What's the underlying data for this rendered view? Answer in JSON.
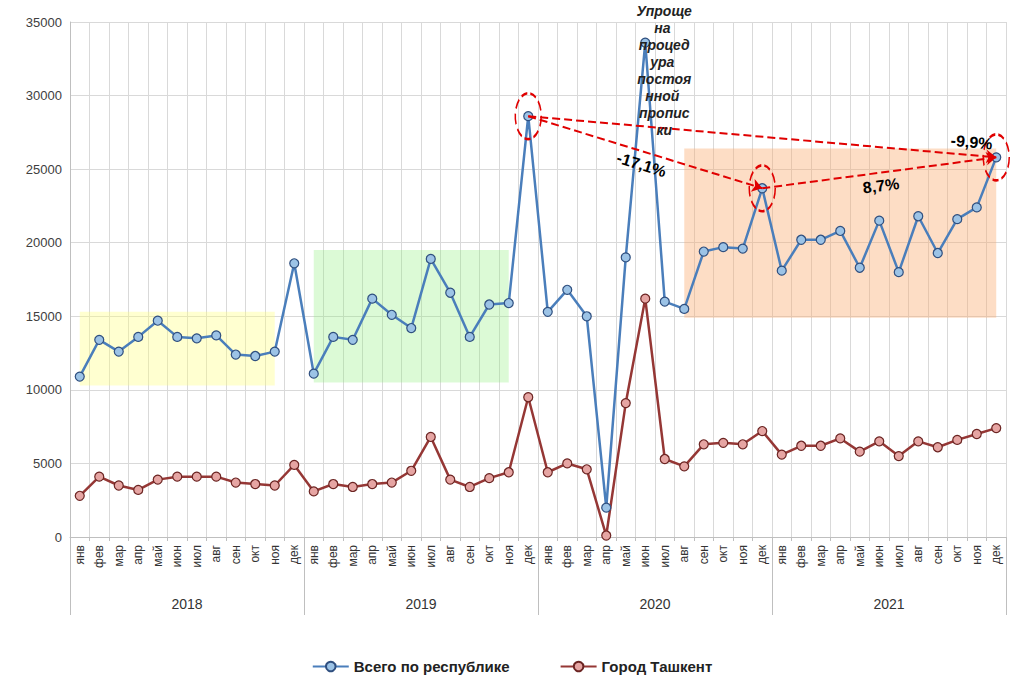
{
  "chart_data": {
    "type": "line",
    "categories": [
      "янв",
      "фев",
      "мар",
      "апр",
      "май",
      "июн",
      "июл",
      "авг",
      "сен",
      "окт",
      "ноя",
      "дек",
      "янв",
      "фев",
      "мар",
      "апр",
      "май",
      "июн",
      "июл",
      "авг",
      "сен",
      "окт",
      "ноя",
      "дек",
      "янв",
      "фев",
      "мар",
      "апр",
      "май",
      "июн",
      "июл",
      "авг",
      "сен",
      "окт",
      "ноя",
      "дек",
      "янв",
      "фев",
      "мар",
      "апр",
      "май",
      "июн",
      "июл",
      "авг",
      "сен",
      "окт",
      "ноя",
      "дек"
    ],
    "years": [
      "2018",
      "2019",
      "2020",
      "2021"
    ],
    "series": [
      {
        "name": "Всего по республике",
        "color": "#4a7ebb",
        "marker": "circle",
        "values": [
          10900,
          13400,
          12600,
          13600,
          14700,
          13600,
          13500,
          13700,
          12400,
          12300,
          12600,
          18600,
          11100,
          13600,
          13400,
          16200,
          15100,
          14200,
          18900,
          16600,
          13600,
          15800,
          15900,
          28600,
          15300,
          16800,
          15000,
          2000,
          19000,
          33600,
          16000,
          15500,
          19400,
          19700,
          19600,
          23700,
          18100,
          20200,
          20200,
          20800,
          18300,
          21500,
          18000,
          21800,
          19300,
          21600,
          22400,
          25800
        ]
      },
      {
        "name": "Город Ташкент",
        "color": "#953735",
        "marker": "circle",
        "values": [
          2800,
          4100,
          3500,
          3200,
          3900,
          4100,
          4100,
          4100,
          3700,
          3600,
          3500,
          4900,
          3100,
          3600,
          3400,
          3600,
          3700,
          4500,
          6800,
          3900,
          3400,
          4000,
          4400,
          9500,
          4400,
          5000,
          4600,
          100,
          9100,
          16200,
          5300,
          4800,
          6300,
          6400,
          6300,
          7200,
          5600,
          6200,
          6200,
          6700,
          5800,
          6500,
          5500,
          6500,
          6100,
          6600,
          7000,
          7400
        ]
      }
    ],
    "ylim": [
      0,
      35000
    ],
    "yticks": [
      0,
      5000,
      10000,
      15000,
      20000,
      25000,
      30000,
      35000
    ],
    "grid": true,
    "legend": "bottom",
    "annotations": [
      {
        "text": "Упрощена процедура постоянной прописки",
        "series": "Всего по республике",
        "month": "июн",
        "year": "2020"
      }
    ],
    "arrows": [
      {
        "text": "-9,9%",
        "series": "Всего по республике",
        "from": {
          "month": "дек",
          "year": "2019"
        },
        "to": {
          "month": "дек",
          "year": "2021"
        }
      },
      {
        "text": "-17,1%",
        "series": "Всего по республике",
        "from": {
          "month": "дек",
          "year": "2019"
        },
        "to": {
          "month": "дек",
          "year": "2020"
        }
      },
      {
        "text": "8,7%",
        "series": "Всего по республике",
        "from": {
          "month": "дек",
          "year": "2020"
        },
        "to": {
          "month": "дек",
          "year": "2021"
        }
      }
    ]
  }
}
